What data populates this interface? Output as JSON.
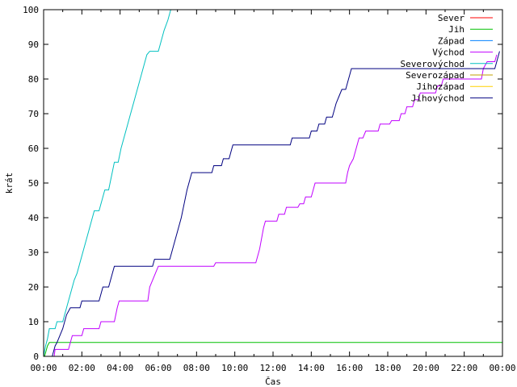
{
  "chart_data": {
    "type": "line",
    "xlabel": "Čas",
    "ylabel": "krát",
    "xlim": [
      0,
      24
    ],
    "ylim": [
      0,
      100
    ],
    "x_ticks": [
      {
        "value": 0,
        "label": "00:00"
      },
      {
        "value": 2,
        "label": "02:00"
      },
      {
        "value": 4,
        "label": "04:00"
      },
      {
        "value": 6,
        "label": "06:00"
      },
      {
        "value": 8,
        "label": "08:00"
      },
      {
        "value": 10,
        "label": "10:00"
      },
      {
        "value": 12,
        "label": "12:00"
      },
      {
        "value": 14,
        "label": "14:00"
      },
      {
        "value": 16,
        "label": "16:00"
      },
      {
        "value": 18,
        "label": "18:00"
      },
      {
        "value": 20,
        "label": "20:00"
      },
      {
        "value": 22,
        "label": "22:00"
      },
      {
        "value": 24,
        "label": "00:00"
      }
    ],
    "y_ticks": [
      0,
      10,
      20,
      30,
      40,
      50,
      60,
      70,
      80,
      90,
      100
    ],
    "legend_position": "top-right",
    "series": [
      {
        "name": "Sever",
        "color": "#ff0000",
        "points": []
      },
      {
        "name": "Jih",
        "color": "#00c000",
        "points": [
          [
            0.05,
            0
          ],
          [
            0.1,
            1
          ],
          [
            0.15,
            2
          ],
          [
            0.2,
            3
          ],
          [
            0.3,
            4
          ],
          [
            24,
            4
          ]
        ]
      },
      {
        "name": "Západ",
        "color": "#0080ff",
        "points": []
      },
      {
        "name": "Východ",
        "color": "#c000ff",
        "points": [
          [
            0,
            0
          ],
          [
            0.55,
            0
          ],
          [
            0.6,
            2
          ],
          [
            1.3,
            2
          ],
          [
            1.4,
            4
          ],
          [
            1.5,
            6
          ],
          [
            2.0,
            6
          ],
          [
            2.1,
            8
          ],
          [
            2.9,
            8
          ],
          [
            3.0,
            10
          ],
          [
            3.7,
            10
          ],
          [
            3.85,
            14
          ],
          [
            3.95,
            16
          ],
          [
            5.45,
            16
          ],
          [
            5.55,
            20
          ],
          [
            5.7,
            22
          ],
          [
            5.85,
            24
          ],
          [
            6.0,
            26
          ],
          [
            8.9,
            26
          ],
          [
            9.0,
            27
          ],
          [
            11.1,
            27
          ],
          [
            11.2,
            29
          ],
          [
            11.3,
            31
          ],
          [
            11.4,
            34
          ],
          [
            11.5,
            37
          ],
          [
            11.6,
            39
          ],
          [
            12.2,
            39
          ],
          [
            12.3,
            41
          ],
          [
            12.6,
            41
          ],
          [
            12.7,
            43
          ],
          [
            13.3,
            43
          ],
          [
            13.4,
            44
          ],
          [
            13.6,
            44
          ],
          [
            13.7,
            46
          ],
          [
            14.0,
            46
          ],
          [
            14.1,
            48
          ],
          [
            14.2,
            50
          ],
          [
            15.8,
            50
          ],
          [
            15.9,
            53
          ],
          [
            16.0,
            55
          ],
          [
            16.2,
            57
          ],
          [
            16.35,
            60
          ],
          [
            16.5,
            63
          ],
          [
            16.7,
            63
          ],
          [
            16.85,
            65
          ],
          [
            17.5,
            65
          ],
          [
            17.6,
            67
          ],
          [
            18.1,
            67
          ],
          [
            18.2,
            68
          ],
          [
            18.6,
            68
          ],
          [
            18.7,
            70
          ],
          [
            18.9,
            70
          ],
          [
            19.0,
            72
          ],
          [
            19.3,
            72
          ],
          [
            19.4,
            74
          ],
          [
            19.6,
            74
          ],
          [
            19.7,
            76
          ],
          [
            20.5,
            76
          ],
          [
            20.6,
            78
          ],
          [
            20.8,
            78
          ],
          [
            20.9,
            80
          ],
          [
            22.9,
            80
          ],
          [
            23.0,
            83
          ],
          [
            23.1,
            84
          ],
          [
            23.2,
            85
          ],
          [
            23.6,
            85
          ],
          [
            23.7,
            87
          ]
        ]
      },
      {
        "name": "Severovýchod",
        "color": "#00c0c0",
        "points": [
          [
            0,
            0
          ],
          [
            0.1,
            3
          ],
          [
            0.2,
            5
          ],
          [
            0.3,
            8
          ],
          [
            0.6,
            8
          ],
          [
            0.7,
            10
          ],
          [
            1.0,
            10
          ],
          [
            1.1,
            12
          ],
          [
            1.2,
            14
          ],
          [
            1.4,
            18
          ],
          [
            1.6,
            22
          ],
          [
            1.75,
            24
          ],
          [
            1.9,
            27
          ],
          [
            2.05,
            30
          ],
          [
            2.2,
            33
          ],
          [
            2.35,
            36
          ],
          [
            2.5,
            39
          ],
          [
            2.65,
            42
          ],
          [
            2.9,
            42
          ],
          [
            3.05,
            45
          ],
          [
            3.2,
            48
          ],
          [
            3.4,
            48
          ],
          [
            3.55,
            52
          ],
          [
            3.7,
            56
          ],
          [
            3.9,
            56
          ],
          [
            4.05,
            60
          ],
          [
            4.2,
            63
          ],
          [
            4.35,
            66
          ],
          [
            4.5,
            69
          ],
          [
            4.65,
            72
          ],
          [
            4.8,
            75
          ],
          [
            4.95,
            78
          ],
          [
            5.1,
            81
          ],
          [
            5.25,
            84
          ],
          [
            5.4,
            87
          ],
          [
            5.55,
            88
          ],
          [
            6.0,
            88
          ],
          [
            6.15,
            91
          ],
          [
            6.3,
            94
          ],
          [
            6.5,
            97
          ],
          [
            6.65,
            100
          ]
        ]
      },
      {
        "name": "Severozápad",
        "color": "#c0a000",
        "points": []
      },
      {
        "name": "Jihozápad",
        "color": "#ffd000",
        "points": []
      },
      {
        "name": "Jihovýchod",
        "color": "#000080",
        "points": [
          [
            0,
            0
          ],
          [
            0.45,
            0
          ],
          [
            0.6,
            3
          ],
          [
            0.7,
            4
          ],
          [
            0.85,
            6
          ],
          [
            1.0,
            8
          ],
          [
            1.1,
            10
          ],
          [
            1.2,
            12
          ],
          [
            1.4,
            14
          ],
          [
            1.9,
            14
          ],
          [
            2.0,
            16
          ],
          [
            2.9,
            16
          ],
          [
            3.0,
            18
          ],
          [
            3.1,
            20
          ],
          [
            3.4,
            20
          ],
          [
            3.5,
            22
          ],
          [
            3.6,
            24
          ],
          [
            3.7,
            26
          ],
          [
            5.7,
            26
          ],
          [
            5.8,
            28
          ],
          [
            6.6,
            28
          ],
          [
            6.8,
            32
          ],
          [
            7.0,
            36
          ],
          [
            7.2,
            40
          ],
          [
            7.35,
            44
          ],
          [
            7.5,
            48
          ],
          [
            7.65,
            51
          ],
          [
            7.75,
            53
          ],
          [
            8.8,
            53
          ],
          [
            8.9,
            55
          ],
          [
            9.3,
            55
          ],
          [
            9.4,
            57
          ],
          [
            9.7,
            57
          ],
          [
            9.8,
            59
          ],
          [
            9.9,
            61
          ],
          [
            12.9,
            61
          ],
          [
            13.0,
            63
          ],
          [
            13.9,
            63
          ],
          [
            14.0,
            65
          ],
          [
            14.3,
            65
          ],
          [
            14.4,
            67
          ],
          [
            14.7,
            67
          ],
          [
            14.8,
            69
          ],
          [
            15.1,
            69
          ],
          [
            15.2,
            71
          ],
          [
            15.3,
            73
          ],
          [
            15.45,
            75
          ],
          [
            15.6,
            77
          ],
          [
            15.8,
            77
          ],
          [
            15.9,
            79
          ],
          [
            16.0,
            81
          ],
          [
            16.1,
            83
          ],
          [
            23.6,
            83
          ],
          [
            23.75,
            86
          ],
          [
            23.85,
            88
          ]
        ]
      }
    ]
  }
}
